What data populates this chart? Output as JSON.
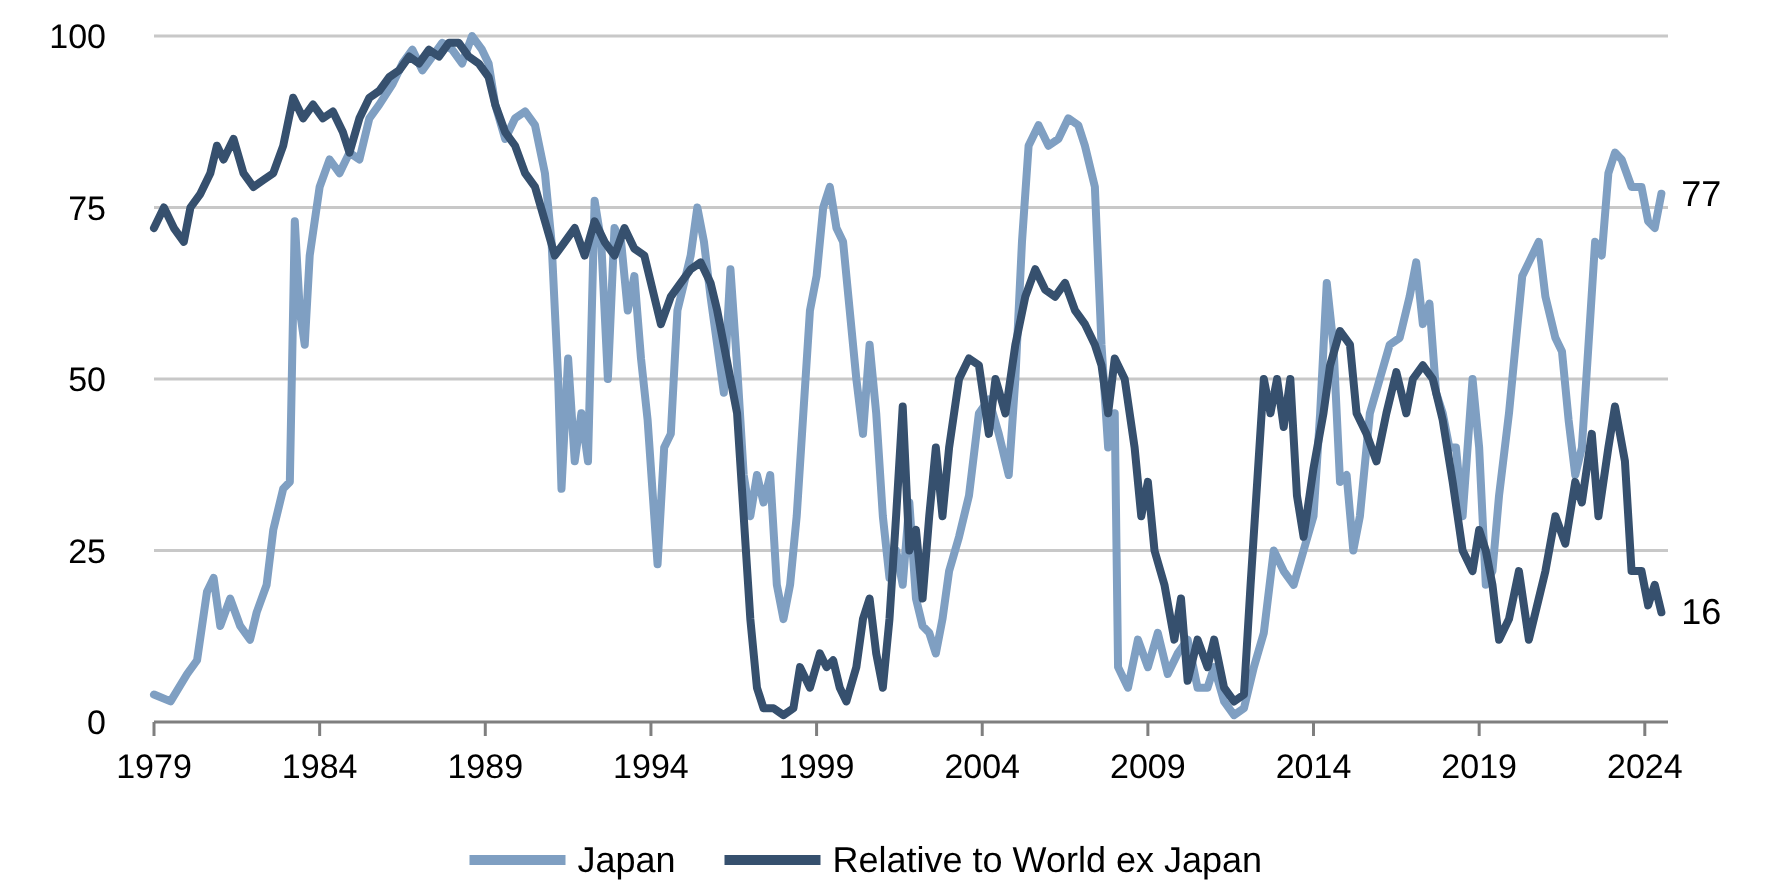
{
  "chart_data": {
    "type": "line",
    "xlim": [
      1979,
      2024.7
    ],
    "xticks": [
      1979,
      1984,
      1989,
      1994,
      1999,
      2004,
      2009,
      2014,
      2019,
      2024
    ],
    "ylim": [
      0,
      100
    ],
    "yticks": [
      0,
      25,
      50,
      75,
      100
    ],
    "grid": "y",
    "legend": "bottom",
    "line_style": "solid",
    "marker": "none",
    "annotations": [
      {
        "text": "77",
        "x": 2024.5,
        "y": 77
      },
      {
        "text": "16",
        "x": 2024.5,
        "y": 16
      }
    ],
    "series": [
      {
        "name": "Japan",
        "color": "#7f9fc2",
        "x": [
          1979.0,
          1979.5,
          1980.0,
          1980.3,
          1980.6,
          1980.8,
          1981.0,
          1981.3,
          1981.6,
          1981.9,
          1982.1,
          1982.4,
          1982.6,
          1982.9,
          1983.1,
          1983.25,
          1983.4,
          1983.55,
          1983.7,
          1984.0,
          1984.3,
          1984.6,
          1984.9,
          1985.2,
          1985.5,
          1985.8,
          1986.2,
          1986.5,
          1986.8,
          1987.1,
          1987.4,
          1987.7,
          1988.0,
          1988.3,
          1988.6,
          1988.9,
          1989.1,
          1989.3,
          1989.6,
          1989.9,
          1990.2,
          1990.5,
          1990.8,
          1991.0,
          1991.2,
          1991.3,
          1991.5,
          1991.7,
          1991.9,
          1992.1,
          1992.3,
          1992.5,
          1992.7,
          1992.9,
          1993.1,
          1993.3,
          1993.5,
          1993.7,
          1993.9,
          1994.1,
          1994.2,
          1994.4,
          1994.6,
          1994.8,
          1995.0,
          1995.2,
          1995.4,
          1995.6,
          1995.8,
          1996.0,
          1996.2,
          1996.4,
          1996.6,
          1996.8,
          1997.0,
          1997.2,
          1997.4,
          1997.6,
          1997.8,
          1998.0,
          1998.2,
          1998.4,
          1998.6,
          1998.8,
          1999.0,
          1999.2,
          1999.4,
          1999.6,
          1999.8,
          2000.0,
          2000.2,
          2000.4,
          2000.6,
          2000.8,
          2001.0,
          2001.2,
          2001.4,
          2001.6,
          2001.8,
          2002.0,
          2002.2,
          2002.4,
          2002.6,
          2002.8,
          2003.0,
          2003.3,
          2003.6,
          2003.9,
          2004.2,
          2004.5,
          2004.8,
          2005.0,
          2005.2,
          2005.4,
          2005.7,
          2006.0,
          2006.3,
          2006.6,
          2006.9,
          2007.1,
          2007.4,
          2007.6,
          2007.8,
          2008.0,
          2008.1,
          2008.4,
          2008.7,
          2009.0,
          2009.3,
          2009.6,
          2009.9,
          2010.2,
          2010.5,
          2010.8,
          2011.0,
          2011.3,
          2011.6,
          2011.9,
          2012.2,
          2012.5,
          2012.8,
          2013.1,
          2013.4,
          2013.7,
          2014.0,
          2014.2,
          2014.4,
          2014.6,
          2014.8,
          2015.0,
          2015.2,
          2015.4,
          2015.7,
          2016.0,
          2016.3,
          2016.6,
          2016.9,
          2017.1,
          2017.3,
          2017.5,
          2017.7,
          2017.9,
          2018.1,
          2018.3,
          2018.5,
          2018.8,
          2019.0,
          2019.2,
          2019.4,
          2019.6,
          2019.9,
          2020.1,
          2020.3,
          2020.5,
          2020.8,
          2021.0,
          2021.3,
          2021.5,
          2021.7,
          2021.9,
          2022.1,
          2022.3,
          2022.5,
          2022.7,
          2022.9,
          2023.1,
          2023.3,
          2023.6,
          2023.9,
          2024.1,
          2024.3,
          2024.5
        ],
        "values": [
          4,
          3,
          7,
          9,
          19,
          21,
          14,
          18,
          14,
          12,
          16,
          20,
          28,
          34,
          35,
          73,
          60,
          55,
          68,
          78,
          82,
          80,
          83,
          82,
          88,
          90,
          93,
          96,
          98,
          95,
          97,
          99,
          98,
          96,
          100,
          98,
          96,
          90,
          85,
          88,
          89,
          87,
          80,
          70,
          50,
          34,
          53,
          38,
          45,
          38,
          76,
          70,
          50,
          72,
          70,
          60,
          65,
          53,
          44,
          30,
          23,
          40,
          42,
          60,
          64,
          68,
          75,
          70,
          62,
          55,
          48,
          66,
          52,
          36,
          30,
          36,
          32,
          36,
          20,
          15,
          20,
          30,
          45,
          60,
          65,
          75,
          78,
          72,
          70,
          60,
          50,
          42,
          55,
          45,
          30,
          21,
          25,
          20,
          32,
          18,
          14,
          13,
          10,
          15,
          22,
          27,
          33,
          45,
          47,
          42,
          36,
          50,
          70,
          84,
          87,
          84,
          85,
          88,
          87,
          84,
          78,
          55,
          40,
          45,
          8,
          5,
          12,
          8,
          13,
          7,
          10,
          12,
          5,
          5,
          8,
          3,
          1,
          2,
          8,
          13,
          25,
          22,
          20,
          25,
          30,
          45,
          64,
          55,
          35,
          36,
          25,
          30,
          45,
          50,
          55,
          56,
          62,
          67,
          58,
          61,
          48,
          45,
          40,
          40,
          30,
          50,
          40,
          20,
          22,
          33,
          45,
          55,
          65,
          67,
          70,
          62,
          56,
          54,
          44,
          36,
          40,
          55,
          70,
          68,
          80,
          83,
          82,
          78,
          78,
          73,
          72,
          77
        ]
      },
      {
        "name": "Relative to World ex Japan",
        "color": "#36506e",
        "x": [
          1979.0,
          1979.3,
          1979.6,
          1979.9,
          1980.1,
          1980.4,
          1980.7,
          1980.9,
          1981.1,
          1981.4,
          1981.7,
          1982.0,
          1982.3,
          1982.6,
          1982.9,
          1983.2,
          1983.5,
          1983.8,
          1984.1,
          1984.4,
          1984.7,
          1984.9,
          1985.2,
          1985.5,
          1985.8,
          1986.1,
          1986.4,
          1986.7,
          1987.0,
          1987.3,
          1987.6,
          1987.9,
          1988.2,
          1988.5,
          1988.8,
          1989.1,
          1989.3,
          1989.6,
          1989.9,
          1990.2,
          1990.5,
          1990.8,
          1991.1,
          1991.4,
          1991.7,
          1992.0,
          1992.3,
          1992.6,
          1992.9,
          1993.2,
          1993.5,
          1993.8,
          1994.1,
          1994.3,
          1994.6,
          1994.9,
          1995.2,
          1995.5,
          1995.8,
          1996.0,
          1996.2,
          1996.4,
          1996.6,
          1996.8,
          1997.0,
          1997.2,
          1997.4,
          1997.7,
          1998.0,
          1998.3,
          1998.5,
          1998.8,
          1999.1,
          1999.3,
          1999.5,
          1999.7,
          1999.9,
          2000.2,
          2000.4,
          2000.6,
          2000.8,
          2001.0,
          2001.2,
          2001.4,
          2001.6,
          2001.8,
          2002.0,
          2002.2,
          2002.4,
          2002.6,
          2002.8,
          2003.0,
          2003.3,
          2003.6,
          2003.9,
          2004.2,
          2004.4,
          2004.7,
          2005.0,
          2005.3,
          2005.6,
          2005.9,
          2006.2,
          2006.5,
          2006.8,
          2007.1,
          2007.4,
          2007.6,
          2007.8,
          2008.0,
          2008.3,
          2008.6,
          2008.8,
          2009.0,
          2009.2,
          2009.5,
          2009.8,
          2010.0,
          2010.2,
          2010.5,
          2010.8,
          2011.0,
          2011.3,
          2011.6,
          2011.9,
          2012.1,
          2012.3,
          2012.5,
          2012.7,
          2012.9,
          2013.1,
          2013.3,
          2013.5,
          2013.7,
          2014.0,
          2014.3,
          2014.5,
          2014.8,
          2015.1,
          2015.3,
          2015.6,
          2015.9,
          2016.2,
          2016.5,
          2016.8,
          2017.0,
          2017.3,
          2017.6,
          2017.9,
          2018.2,
          2018.5,
          2018.8,
          2019.0,
          2019.2,
          2019.4,
          2019.6,
          2019.9,
          2020.2,
          2020.5,
          2020.8,
          2021.0,
          2021.3,
          2021.6,
          2021.9,
          2022.1,
          2022.4,
          2022.6,
          2022.9,
          2023.1,
          2023.4,
          2023.6,
          2023.9,
          2024.1,
          2024.3,
          2024.5
        ],
        "values": [
          72,
          75,
          72,
          70,
          75,
          77,
          80,
          84,
          82,
          85,
          80,
          78,
          79,
          80,
          84,
          91,
          88,
          90,
          88,
          89,
          86,
          83,
          88,
          91,
          92,
          94,
          95,
          97,
          96,
          98,
          97,
          99,
          99,
          97,
          96,
          94,
          90,
          86,
          84,
          80,
          78,
          73,
          68,
          70,
          72,
          68,
          73,
          70,
          68,
          72,
          69,
          68,
          62,
          58,
          62,
          64,
          66,
          67,
          64,
          60,
          55,
          50,
          45,
          30,
          15,
          5,
          2,
          2,
          1,
          2,
          8,
          5,
          10,
          8,
          9,
          5,
          3,
          8,
          15,
          18,
          10,
          5,
          15,
          30,
          46,
          25,
          28,
          18,
          30,
          40,
          30,
          40,
          50,
          53,
          52,
          42,
          50,
          45,
          55,
          62,
          66,
          63,
          62,
          64,
          60,
          58,
          55,
          52,
          45,
          53,
          50,
          40,
          30,
          35,
          25,
          20,
          12,
          18,
          6,
          12,
          8,
          12,
          5,
          3,
          4,
          20,
          35,
          50,
          45,
          50,
          43,
          50,
          33,
          27,
          37,
          45,
          52,
          57,
          55,
          45,
          42,
          38,
          45,
          51,
          45,
          50,
          52,
          50,
          44,
          35,
          25,
          22,
          28,
          25,
          20,
          12,
          15,
          22,
          12,
          18,
          22,
          30,
          26,
          35,
          32,
          42,
          30,
          40,
          46,
          38,
          22,
          22,
          17,
          20,
          16
        ]
      }
    ]
  }
}
